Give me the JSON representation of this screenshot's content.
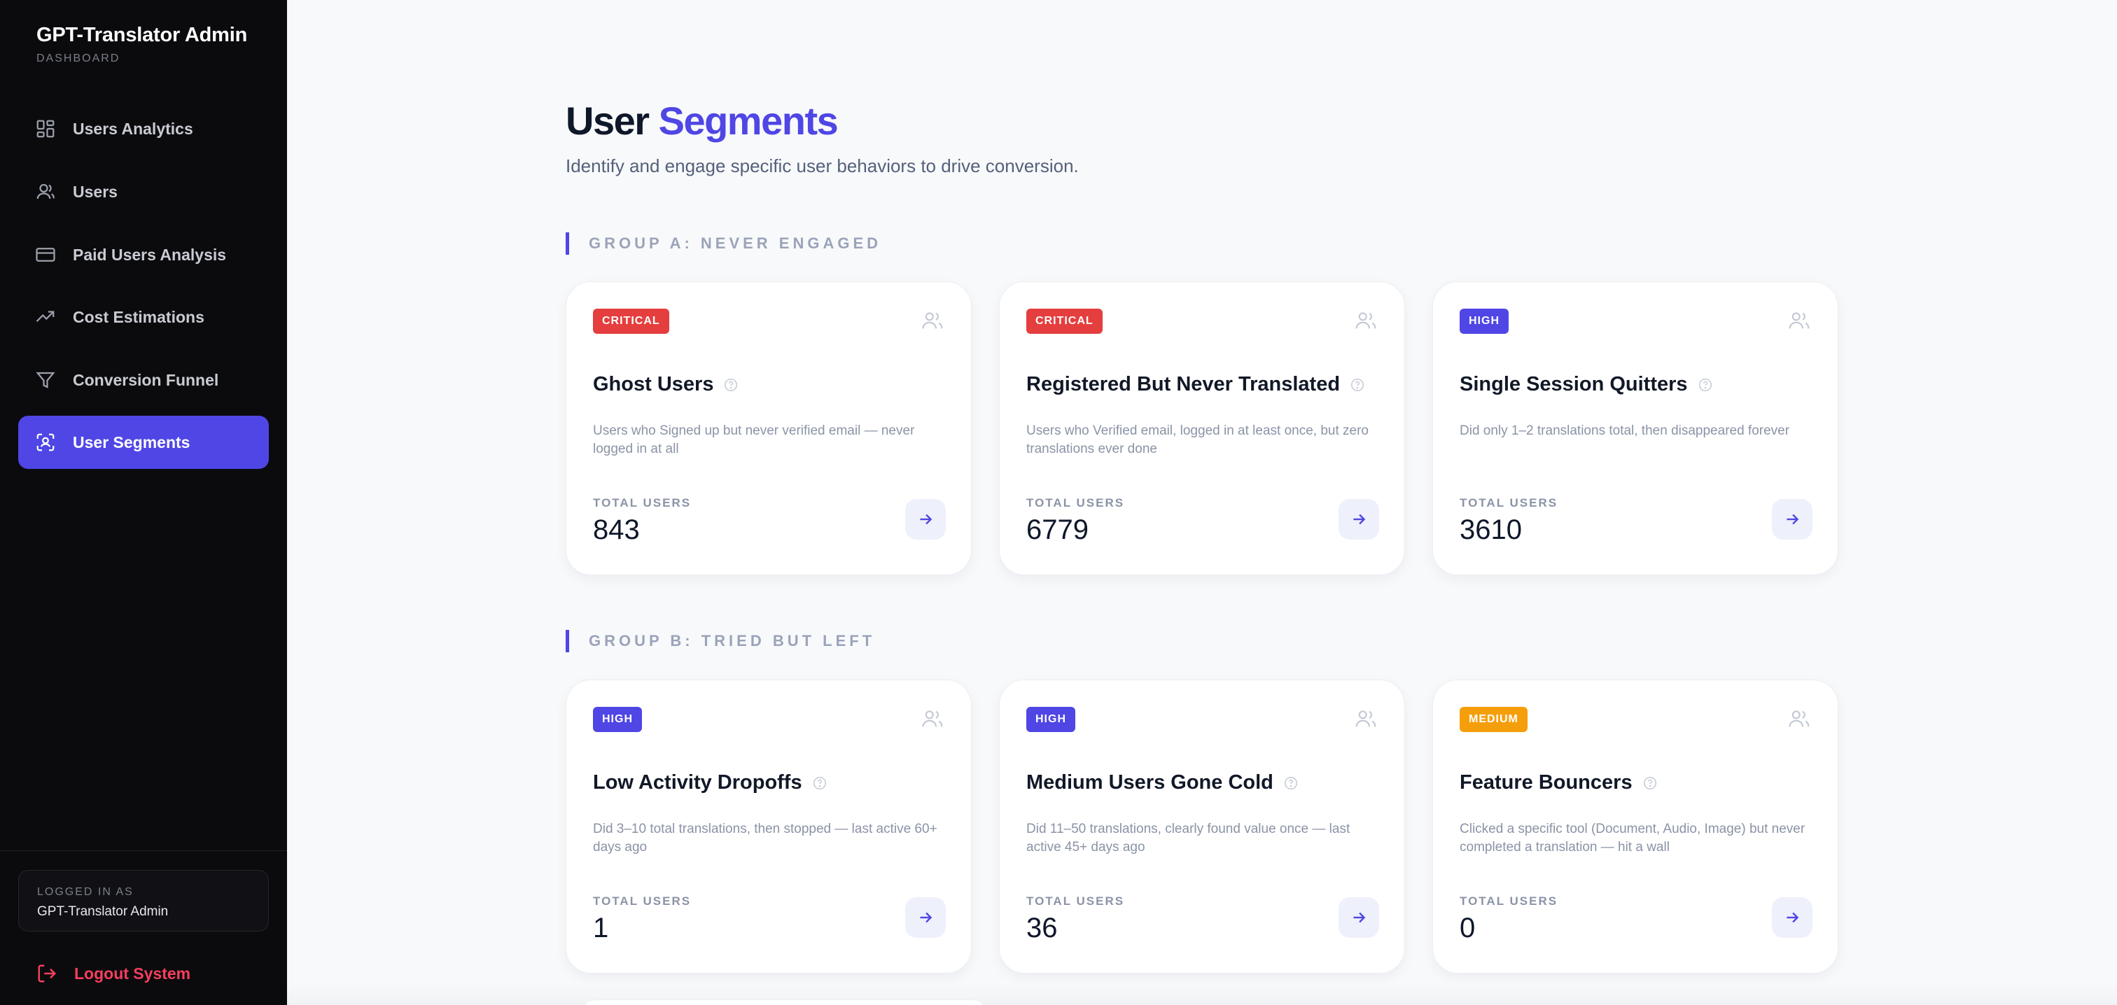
{
  "sidebar": {
    "brand_title": "GPT-Translator Admin",
    "brand_subtitle": "DASHBOARD",
    "items": [
      {
        "label": "Users Analytics",
        "icon": "dashboard-grid-icon"
      },
      {
        "label": "Users",
        "icon": "user-icon"
      },
      {
        "label": "Paid Users Analysis",
        "icon": "credit-card-icon"
      },
      {
        "label": "Cost Estimations",
        "icon": "trend-up-icon"
      },
      {
        "label": "Conversion Funnel",
        "icon": "funnel-icon"
      },
      {
        "label": "User Segments",
        "icon": "scan-user-icon",
        "active": true
      }
    ],
    "logged_in_label": "LOGGED IN AS",
    "logged_in_name": "GPT-Translator Admin",
    "logout_label": "Logout System"
  },
  "header": {
    "title_main": "User",
    "title_accent": "Segments",
    "subtitle": "Identify and engage specific user behaviors to drive conversion."
  },
  "colors": {
    "accent": "#4f46e5",
    "critical": "#e53e3e",
    "high": "#4f46e5",
    "medium": "#f59e0b",
    "logout": "#f43f5e"
  },
  "groups": [
    {
      "label": "GROUP A: NEVER ENGAGED",
      "cards": [
        {
          "badge": "CRITICAL",
          "title": "Ghost Users",
          "description": "Users who Signed up but never verified email — never logged in at all",
          "total_label": "TOTAL USERS",
          "total": "843"
        },
        {
          "badge": "CRITICAL",
          "title": "Registered But Never Translated",
          "description": "Users who Verified email, logged in at least once, but zero translations ever done",
          "total_label": "TOTAL USERS",
          "total": "6779"
        },
        {
          "badge": "HIGH",
          "title": "Single Session Quitters",
          "description": "Did only 1–2 translations total, then disappeared forever",
          "total_label": "TOTAL USERS",
          "total": "3610"
        }
      ]
    },
    {
      "label": "GROUP B: TRIED BUT LEFT",
      "cards": [
        {
          "badge": "HIGH",
          "title": "Low Activity Dropoffs",
          "description": "Did 3–10 total translations, then stopped — last active 60+ days ago",
          "total_label": "TOTAL USERS",
          "total": "1"
        },
        {
          "badge": "HIGH",
          "title": "Medium Users Gone Cold",
          "description": "Did 11–50 translations, clearly found value once — last active 45+ days ago",
          "total_label": "TOTAL USERS",
          "total": "36"
        },
        {
          "badge": "MEDIUM",
          "title": "Feature Bouncers",
          "description": "Clicked a specific tool (Document, Audio, Image) but never completed a translation — hit a wall",
          "total_label": "TOTAL USERS",
          "total": "0"
        }
      ]
    }
  ]
}
